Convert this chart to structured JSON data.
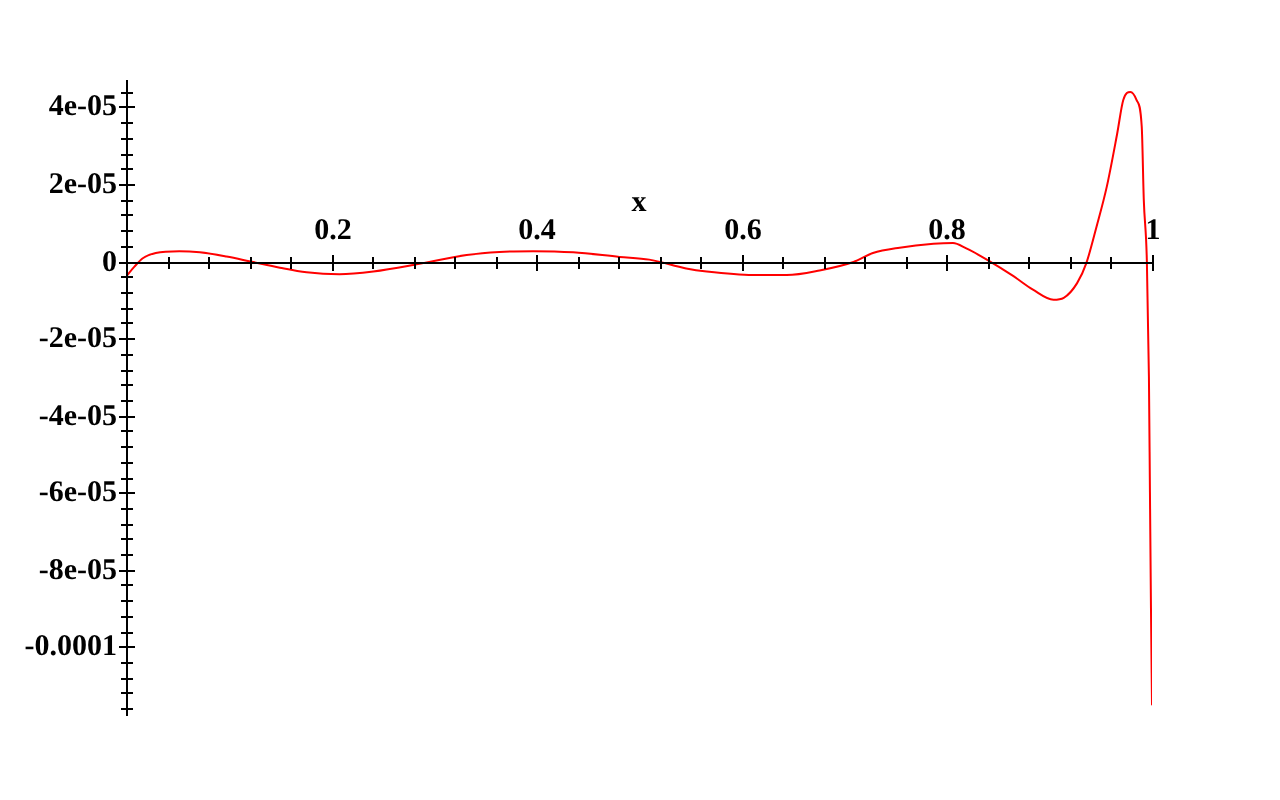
{
  "chart_data": {
    "type": "line",
    "xlabel": "x",
    "x": [
      0,
      0.008,
      0.016,
      0.029,
      0.052,
      0.072,
      0.098,
      0.12,
      0.15,
      0.176,
      0.208,
      0.241,
      0.28,
      0.299,
      0.332,
      0.364,
      0.397,
      0.436,
      0.481,
      0.51,
      0.546,
      0.566,
      0.611,
      0.644,
      0.676,
      0.709,
      0.728,
      0.754,
      0.787,
      0.806,
      0.819,
      0.839,
      0.865,
      0.884,
      0.904,
      0.914,
      0.927,
      0.936,
      0.946,
      0.956,
      0.966,
      0.972,
      0.979,
      0.985,
      0.99,
      0.992,
      0.995,
      0.997,
      0.998,
      0.999,
      1
    ],
    "series": [
      {
        "color": "#ff0000",
        "values": [
          -4e-06,
          -1.5e-06,
          7e-07,
          2.1e-06,
          2.6e-06,
          2.3e-06,
          1.2e-06,
          0,
          -1.7e-06,
          -2.9e-06,
          -3.4e-06,
          -2.7e-06,
          -1e-06,
          0,
          1.6e-06,
          2.4e-06,
          2.6e-06,
          2.3e-06,
          1.1e-06,
          4e-07,
          -1.9e-06,
          -2.7e-06,
          -3.6e-06,
          -3.6e-06,
          -2.4e-06,
          -2e-07,
          2.1e-06,
          3.5e-06,
          4.5e-06,
          4.7e-06,
          3.3e-06,
          4e-07,
          -3.9e-06,
          -7.4e-06,
          -1e-05,
          -9.5e-06,
          -5.7e-06,
          -5e-07,
          9e-06,
          1.94e-05,
          3.3e-05,
          4.18e-05,
          4.39e-05,
          4.18e-05,
          3.49e-05,
          1.59e-05,
          0,
          -3e-05,
          -6e-05,
          -9e-05,
          -0.000115
        ]
      }
    ],
    "xlim": [
      0,
      1
    ],
    "ylim": [
      -0.000118,
      4.7e-05
    ],
    "xticks": [
      {
        "value": 0.04,
        "label": null
      },
      {
        "value": 0.08,
        "label": null
      },
      {
        "value": 0.12,
        "label": null
      },
      {
        "value": 0.16,
        "label": null
      },
      0.2,
      {
        "value": 0.24,
        "label": null
      },
      {
        "value": 0.28,
        "label": null
      },
      {
        "value": 0.32,
        "label": null
      },
      {
        "value": 0.36,
        "label": null
      },
      0.4,
      {
        "value": 0.44,
        "label": null
      },
      {
        "value": 0.48,
        "label": null
      },
      {
        "value": 0.52,
        "label": null
      },
      {
        "value": 0.56,
        "label": null
      },
      0.6,
      {
        "value": 0.64,
        "label": null
      },
      {
        "value": 0.68,
        "label": null
      },
      {
        "value": 0.72,
        "label": null
      },
      {
        "value": 0.76,
        "label": null
      },
      0.8,
      {
        "value": 0.84,
        "label": null
      },
      {
        "value": 0.88,
        "label": null
      },
      {
        "value": 0.92,
        "label": null
      },
      {
        "value": 0.96,
        "label": null
      },
      1
    ],
    "yticks": [
      {
        "value": -0.000116,
        "label": null
      },
      {
        "value": -0.000112,
        "label": null
      },
      {
        "value": -0.000108,
        "label": null
      },
      {
        "value": -0.000104,
        "label": null
      },
      -0.0001,
      {
        "value": -9.6e-05,
        "label": null
      },
      {
        "value": -9.2e-05,
        "label": null
      },
      {
        "value": -8.8e-05,
        "label": null
      },
      {
        "value": -8.4e-05,
        "label": null
      },
      {
        "value": -8e-05,
        "label": "-8e-05"
      },
      {
        "value": -7.6e-05,
        "label": null
      },
      {
        "value": -7.2e-05,
        "label": null
      },
      {
        "value": -6.8e-05,
        "label": null
      },
      {
        "value": -6.4e-05,
        "label": null
      },
      {
        "value": -6e-05,
        "label": "-6e-05"
      },
      {
        "value": -5.6e-05,
        "label": null
      },
      {
        "value": -5.2e-05,
        "label": null
      },
      {
        "value": -4.8e-05,
        "label": null
      },
      {
        "value": -4.4e-05,
        "label": null
      },
      {
        "value": -4e-05,
        "label": "-4e-05"
      },
      {
        "value": -3.6e-05,
        "label": null
      },
      {
        "value": -3.2e-05,
        "label": null
      },
      {
        "value": -2.8e-05,
        "label": null
      },
      {
        "value": -2.4e-05,
        "label": null
      },
      {
        "value": -2e-05,
        "label": "-2e-05"
      },
      {
        "value": -1.6e-05,
        "label": null
      },
      {
        "value": -1.2e-05,
        "label": null
      },
      {
        "value": -8e-06,
        "label": null
      },
      {
        "value": -4e-06,
        "label": null
      },
      0,
      {
        "value": 4e-06,
        "label": null
      },
      {
        "value": 8e-06,
        "label": null
      },
      {
        "value": 1.2e-05,
        "label": null
      },
      {
        "value": 1.6e-05,
        "label": null
      },
      {
        "value": 2e-05,
        "label": "2e-05"
      },
      {
        "value": 2.4e-05,
        "label": null
      },
      {
        "value": 2.8e-05,
        "label": null
      },
      {
        "value": 3.2e-05,
        "label": null
      },
      {
        "value": 3.6e-05,
        "label": null
      },
      {
        "value": 4e-05,
        "label": "4e-05"
      },
      {
        "value": 4.4e-05,
        "label": null
      }
    ],
    "line_style": "solid"
  }
}
